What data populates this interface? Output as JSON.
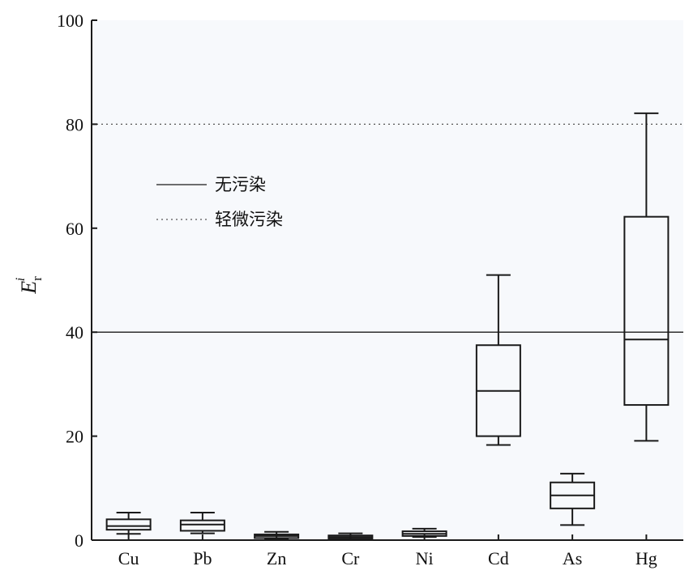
{
  "chart_data": {
    "type": "boxplot",
    "title": "",
    "xlabel": "",
    "ylabel": {
      "main": "E",
      "superscript": "i",
      "subscript": "r"
    },
    "ylim": [
      0,
      100
    ],
    "yticks": [
      0,
      20,
      40,
      60,
      80,
      100
    ],
    "categories": [
      "Cu",
      "Pb",
      "Zn",
      "Cr",
      "Ni",
      "Cd",
      "As",
      "Hg"
    ],
    "boxes": [
      {
        "name": "Cu",
        "min": 1.2,
        "q1": 2.0,
        "median": 2.7,
        "q3": 4.0,
        "max": 5.3
      },
      {
        "name": "Pb",
        "min": 1.3,
        "q1": 1.8,
        "median": 3.0,
        "q3": 3.8,
        "max": 5.3
      },
      {
        "name": "Zn",
        "min": 0.2,
        "q1": 0.4,
        "median": 0.8,
        "q3": 1.1,
        "max": 1.6
      },
      {
        "name": "Cr",
        "min": 0.2,
        "q1": 0.3,
        "median": 0.6,
        "q3": 0.9,
        "max": 1.3
      },
      {
        "name": "Ni",
        "min": 0.6,
        "q1": 0.8,
        "median": 1.2,
        "q3": 1.7,
        "max": 2.2
      },
      {
        "name": "Cd",
        "min": 18.3,
        "q1": 20.0,
        "median": 28.7,
        "q3": 37.5,
        "max": 51.0
      },
      {
        "name": "As",
        "min": 2.9,
        "q1": 6.1,
        "median": 8.6,
        "q3": 11.1,
        "max": 12.8
      },
      {
        "name": "Hg",
        "min": 19.1,
        "q1": 26.0,
        "median": 38.6,
        "q3": 62.2,
        "max": 82.1
      }
    ],
    "reference_lines": [
      {
        "value": 40,
        "label": "无污染",
        "style": "solid"
      },
      {
        "value": 80,
        "label": "轻微污染",
        "style": "dotted"
      }
    ],
    "legend": {
      "placement": "upper-left",
      "entries": [
        {
          "label": "无污染",
          "style": "solid"
        },
        {
          "label": "轻微污染",
          "style": "dotted"
        }
      ]
    },
    "grid": false,
    "colors": {
      "line": "#1a1a1a",
      "plot_background": "#f7f9fc"
    }
  }
}
